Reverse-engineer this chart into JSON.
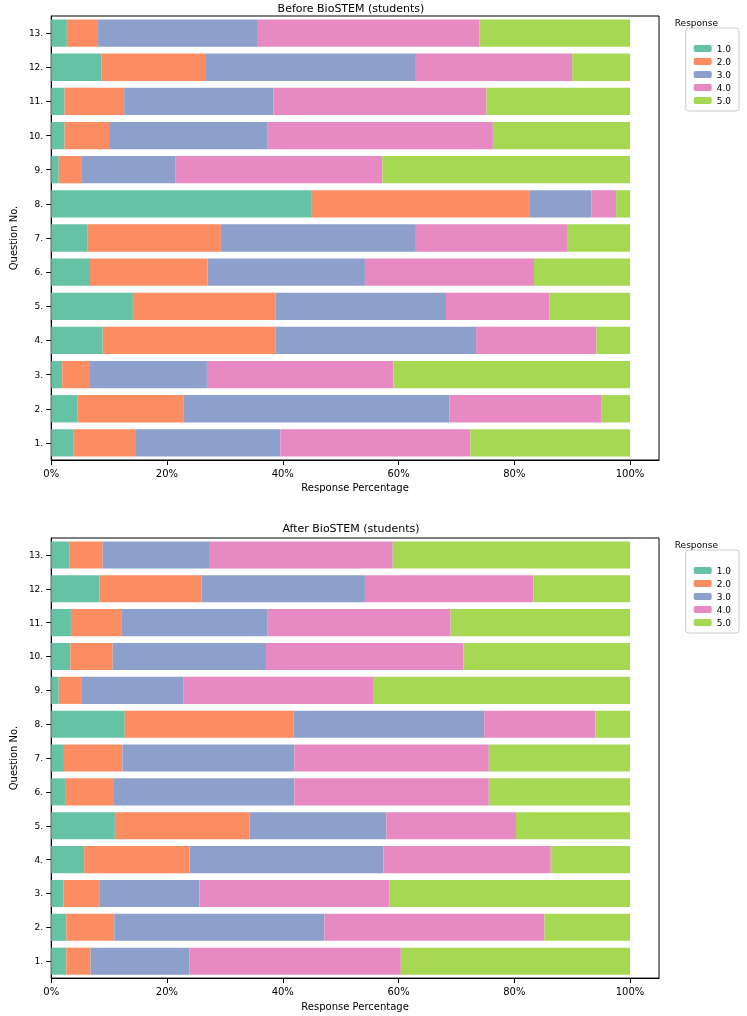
{
  "chart_data": [
    {
      "type": "bar",
      "title": "Before BioSTEM (students)",
      "xlabel": "Response Percentage",
      "ylabel": "Question No.",
      "legend_title": "Response",
      "orientation": "horizontal",
      "stacked": true,
      "grid": false,
      "legend": "top right",
      "categories": [
        "13.",
        "12.",
        "11.",
        "10.",
        "9.",
        "8.",
        "7.",
        "6.",
        "5.",
        "4.",
        "3.",
        "2.",
        "1."
      ],
      "xlim": [
        0,
        105
      ],
      "xticks": [
        {
          "value": 0,
          "label": "0%"
        },
        {
          "value": 20,
          "label": "20%"
        },
        {
          "value": 40,
          "label": "40%"
        },
        {
          "value": 60,
          "label": "60%"
        },
        {
          "value": 80,
          "label": "80%"
        },
        {
          "value": 100,
          "label": "100%"
        }
      ],
      "series": [
        {
          "name": "1.0",
          "color": "#66c2a5",
          "values": [
            2.7,
            8.7,
            2.3,
            2.3,
            1.3,
            44.9,
            6.3,
            6.7,
            14.1,
            8.9,
            1.9,
            4.5,
            3.9
          ]
        },
        {
          "name": "2.0",
          "color": "#fc8d62",
          "values": [
            5.4,
            17.9,
            10.3,
            7.7,
            4.0,
            37.8,
            23.0,
            20.3,
            24.7,
            29.9,
            4.8,
            18.4,
            10.6
          ]
        },
        {
          "name": "3.0",
          "color": "#8da0cb",
          "values": [
            27.6,
            36.4,
            25.8,
            27.3,
            16.2,
            10.6,
            33.7,
            27.2,
            29.4,
            34.6,
            20.2,
            45.9,
            25.1
          ]
        },
        {
          "name": "4.0",
          "color": "#e78ac3",
          "values": [
            38.3,
            27.0,
            36.8,
            39.0,
            35.7,
            4.3,
            26.1,
            29.2,
            17.9,
            20.8,
            32.2,
            26.3,
            32.8
          ]
        },
        {
          "name": "5.0",
          "color": "#a6d854",
          "values": [
            26.0,
            10.0,
            24.8,
            23.7,
            42.8,
            2.4,
            10.9,
            16.6,
            13.9,
            5.8,
            40.9,
            4.9,
            27.6
          ]
        }
      ]
    },
    {
      "type": "bar",
      "title": "After BioSTEM (students)",
      "xlabel": "Response Percentage",
      "ylabel": "Question No.",
      "legend_title": "Response",
      "orientation": "horizontal",
      "stacked": true,
      "grid": false,
      "legend": "top right",
      "categories": [
        "13.",
        "12.",
        "11.",
        "10.",
        "9.",
        "8.",
        "7.",
        "6.",
        "5.",
        "4.",
        "3.",
        "2.",
        "1."
      ],
      "xlim": [
        0,
        105
      ],
      "xticks": [
        {
          "value": 0,
          "label": "0%"
        },
        {
          "value": 20,
          "label": "20%"
        },
        {
          "value": 40,
          "label": "40%"
        },
        {
          "value": 60,
          "label": "60%"
        },
        {
          "value": 80,
          "label": "80%"
        },
        {
          "value": 100,
          "label": "100%"
        }
      ],
      "series": [
        {
          "name": "1.0",
          "color": "#66c2a5",
          "values": [
            3.2,
            8.3,
            3.4,
            3.3,
            1.3,
            12.7,
            2.2,
            2.4,
            11.0,
            5.7,
            2.1,
            2.6,
            2.6
          ]
        },
        {
          "name": "2.0",
          "color": "#fc8d62",
          "values": [
            5.7,
            17.7,
            8.7,
            7.3,
            4.0,
            29.2,
            10.1,
            8.3,
            23.3,
            18.2,
            6.2,
            8.3,
            4.2
          ]
        },
        {
          "name": "3.0",
          "color": "#8da0cb",
          "values": [
            18.5,
            28.2,
            25.3,
            26.5,
            17.5,
            32.9,
            29.7,
            31.3,
            23.6,
            33.5,
            17.3,
            36.3,
            17.1
          ]
        },
        {
          "name": "4.0",
          "color": "#e78ac3",
          "values": [
            31.6,
            29.1,
            31.6,
            34.1,
            32.8,
            19.2,
            33.6,
            33.6,
            22.4,
            28.9,
            32.8,
            38.0,
            36.5
          ]
        },
        {
          "name": "5.0",
          "color": "#a6d854",
          "values": [
            41.0,
            16.7,
            31.0,
            28.8,
            44.4,
            6.0,
            24.4,
            24.4,
            19.7,
            13.7,
            41.6,
            14.8,
            39.6
          ]
        }
      ]
    }
  ]
}
